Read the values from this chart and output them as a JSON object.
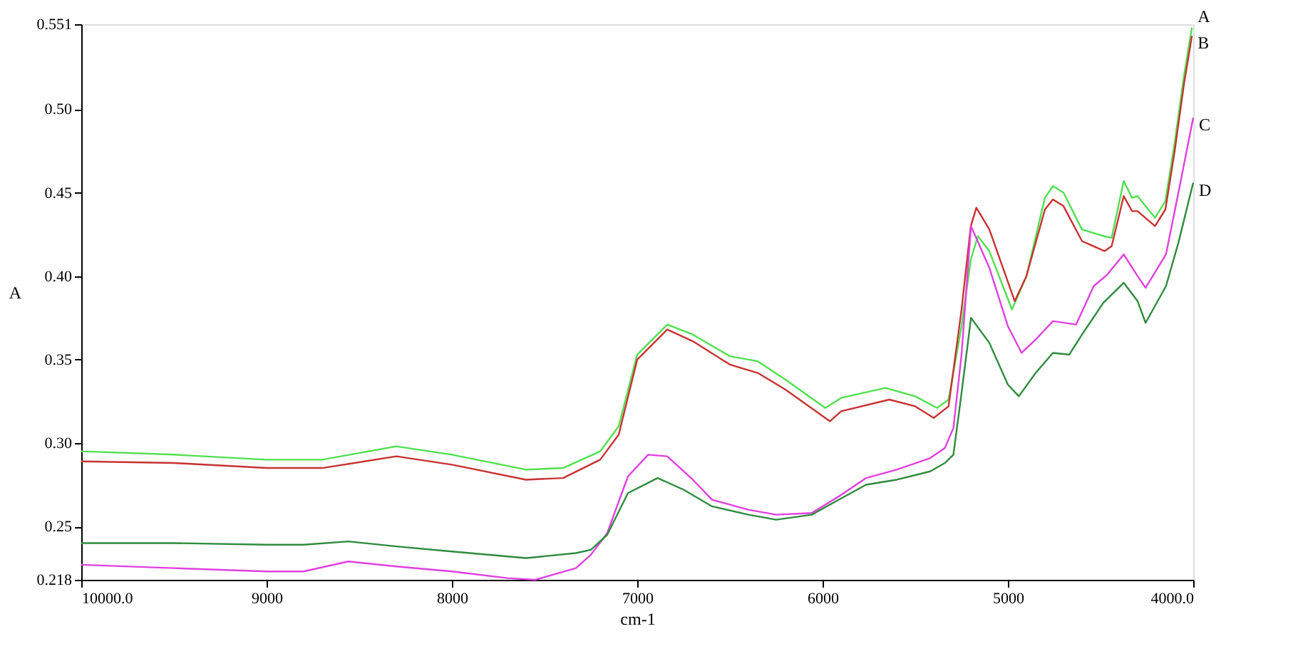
{
  "chart_data": {
    "type": "line",
    "xlabel": "cm-1",
    "ylabel": "A",
    "xlim": [
      10000,
      4000
    ],
    "xticks": [
      {
        "value": 10000,
        "label": "10000.0"
      },
      9000,
      8000,
      7000,
      6000,
      5000,
      {
        "value": 4000,
        "label": "4000.0"
      }
    ],
    "ylim": [
      0.218,
      0.551
    ],
    "yticks": [
      0.218,
      {
        "value": 0.25,
        "label": "0.25"
      },
      {
        "value": 0.3,
        "label": "0.30"
      },
      0.35,
      {
        "value": 0.4,
        "label": "0.40"
      },
      0.45,
      {
        "value": 0.5,
        "label": "0.50"
      },
      0.551
    ],
    "grid": false,
    "marker": "none",
    "line_style": "solid",
    "series": [
      {
        "name": "A",
        "color": "#4fe04f",
        "x": [
          10000,
          9500,
          9000,
          8700,
          8300,
          8000,
          7600,
          7400,
          7200,
          7100,
          7000,
          6838,
          6700,
          6500,
          6350,
          6200,
          5985,
          5900,
          5662,
          5500,
          5382,
          5320,
          5250,
          5200,
          5162,
          5100,
          4978,
          4900,
          4800,
          4757,
          4700,
          4600,
          4485,
          4440,
          4375,
          4330,
          4301,
          4206,
          4150,
          4100,
          4050,
          4007
        ],
        "values": [
          0.295,
          0.293,
          0.29,
          0.29,
          0.298,
          0.293,
          0.284,
          0.285,
          0.295,
          0.31,
          0.353,
          0.371,
          0.365,
          0.352,
          0.349,
          0.338,
          0.321,
          0.327,
          0.333,
          0.328,
          0.321,
          0.326,
          0.37,
          0.41,
          0.424,
          0.415,
          0.38,
          0.4,
          0.447,
          0.454,
          0.45,
          0.428,
          0.424,
          0.423,
          0.457,
          0.447,
          0.448,
          0.435,
          0.445,
          0.48,
          0.52,
          0.549
        ]
      },
      {
        "name": "B",
        "color": "#c83232",
        "x": [
          10000,
          9500,
          9000,
          8700,
          8300,
          8000,
          7600,
          7400,
          7200,
          7100,
          7000,
          6838,
          6700,
          6500,
          6350,
          6200,
          5960,
          5900,
          5640,
          5500,
          5400,
          5320,
          5250,
          5200,
          5170,
          5100,
          4963,
          4900,
          4800,
          4757,
          4700,
          4600,
          4478,
          4440,
          4375,
          4330,
          4301,
          4206,
          4150,
          4100,
          4050,
          4007
        ],
        "values": [
          0.289,
          0.288,
          0.285,
          0.285,
          0.292,
          0.287,
          0.278,
          0.279,
          0.29,
          0.305,
          0.35,
          0.368,
          0.361,
          0.347,
          0.342,
          0.332,
          0.313,
          0.319,
          0.326,
          0.322,
          0.315,
          0.322,
          0.38,
          0.43,
          0.441,
          0.428,
          0.385,
          0.4,
          0.44,
          0.446,
          0.442,
          0.421,
          0.415,
          0.418,
          0.448,
          0.439,
          0.439,
          0.43,
          0.44,
          0.475,
          0.515,
          0.544
        ]
      },
      {
        "name": "C",
        "color": "#e040e0",
        "x": [
          10000,
          9500,
          9000,
          8800,
          8559,
          8300,
          8000,
          7700,
          7551,
          7331,
          7250,
          7162,
          7050,
          6941,
          6838,
          6700,
          6596,
          6400,
          6250,
          6059,
          5912,
          5765,
          5600,
          5419,
          5340,
          5294,
          5250,
          5199,
          5100,
          5000,
          4926,
          4850,
          4757,
          4632,
          4537,
          4463,
          4375,
          4300,
          4257,
          4147,
          4080,
          4000
        ],
        "values": [
          0.227,
          0.225,
          0.223,
          0.223,
          0.229,
          0.226,
          0.223,
          0.219,
          0.218,
          0.225,
          0.233,
          0.246,
          0.28,
          0.293,
          0.292,
          0.278,
          0.266,
          0.26,
          0.257,
          0.258,
          0.268,
          0.279,
          0.284,
          0.291,
          0.297,
          0.309,
          0.353,
          0.43,
          0.405,
          0.37,
          0.354,
          0.362,
          0.373,
          0.371,
          0.394,
          0.401,
          0.413,
          0.4,
          0.393,
          0.413,
          0.45,
          0.495
        ]
      },
      {
        "name": "D",
        "color": "#2e8b3e",
        "x": [
          10000,
          9500,
          9000,
          8800,
          8559,
          8300,
          8000,
          7600,
          7331,
          7250,
          7162,
          7050,
          6890,
          6750,
          6596,
          6400,
          6250,
          6059,
          5912,
          5765,
          5600,
          5419,
          5340,
          5294,
          5250,
          5199,
          5100,
          5000,
          4941,
          4850,
          4757,
          4669,
          4600,
          4485,
          4375,
          4300,
          4257,
          4147,
          4080,
          4000
        ],
        "values": [
          0.24,
          0.24,
          0.239,
          0.239,
          0.241,
          0.238,
          0.235,
          0.231,
          0.234,
          0.236,
          0.245,
          0.27,
          0.279,
          0.272,
          0.262,
          0.257,
          0.254,
          0.257,
          0.266,
          0.275,
          0.278,
          0.283,
          0.288,
          0.293,
          0.33,
          0.375,
          0.36,
          0.335,
          0.328,
          0.342,
          0.354,
          0.353,
          0.365,
          0.384,
          0.396,
          0.385,
          0.372,
          0.394,
          0.42,
          0.456
        ]
      }
    ]
  }
}
